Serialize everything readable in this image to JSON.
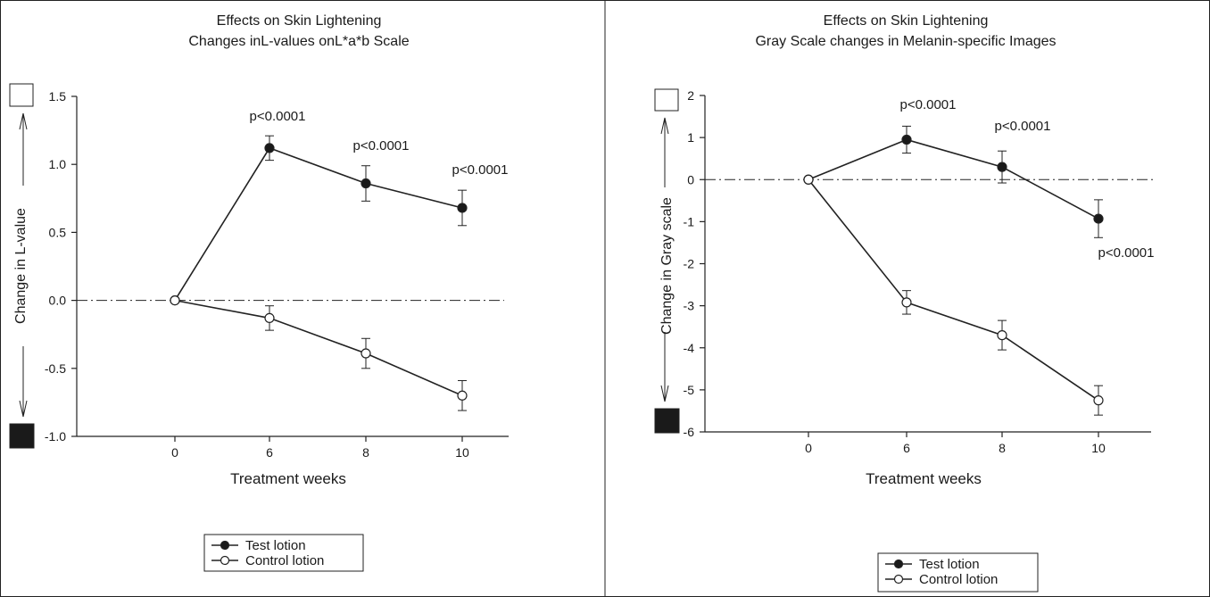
{
  "chart_data": [
    {
      "type": "line",
      "title": "Effects on Skin Lightening",
      "subtitle": "Changes inL-values onL*a*b Scale",
      "xlabel": "Treatment weeks",
      "ylabel": "Change in L-value",
      "x": [
        0,
        6,
        8,
        10
      ],
      "x_ticks": [
        "0",
        "6",
        "8",
        "10"
      ],
      "ylim": [
        -1.0,
        1.5
      ],
      "y_ticks": [
        -1.0,
        -0.5,
        0.0,
        0.5,
        1.0,
        1.5
      ],
      "y_tick_labels": [
        "-1.0",
        "-0.5",
        "0.0",
        "0.5",
        "1.0",
        "1.5"
      ],
      "grid": false,
      "reference_line": 0,
      "series": [
        {
          "name": "Test lotion",
          "marker": "filled-circle",
          "values": [
            0,
            1.12,
            0.86,
            0.68
          ],
          "error": [
            0,
            0.09,
            0.13,
            0.13
          ]
        },
        {
          "name": "Control lotion",
          "marker": "open-circle",
          "values": [
            0,
            -0.13,
            -0.39,
            -0.7
          ],
          "error": [
            0,
            0.09,
            0.11,
            0.11
          ]
        }
      ],
      "annotations": [
        {
          "text": "p<0.0001",
          "x": 6,
          "y": 1.32
        },
        {
          "text": "p<0.0001",
          "x": 8,
          "y": 1.11
        },
        {
          "text": "p<0.0001",
          "x": 10,
          "y": 0.92
        }
      ],
      "legend": {
        "placement": "bottom",
        "items": [
          "Test lotion",
          "Control lotion"
        ]
      }
    },
    {
      "type": "line",
      "title": "Effects on Skin Lightening",
      "subtitle": "Gray Scale changes in Melanin-specific Images",
      "xlabel": "Treatment weeks",
      "ylabel": "Change in Gray scale",
      "x": [
        0,
        6,
        8,
        10
      ],
      "x_ticks": [
        "0",
        "6",
        "8",
        "10"
      ],
      "ylim": [
        -6,
        2
      ],
      "y_ticks": [
        -6,
        -5,
        -4,
        -3,
        -2,
        -1,
        0,
        1,
        2
      ],
      "y_tick_labels": [
        "-6",
        "-5",
        "-4",
        "-3",
        "-2",
        "-1",
        "0",
        "1",
        "2"
      ],
      "grid": false,
      "reference_line": 0,
      "series": [
        {
          "name": "Test lotion",
          "marker": "filled-circle",
          "values": [
            0,
            0.95,
            0.3,
            -0.93
          ],
          "error": [
            0,
            0.32,
            0.38,
            0.45
          ]
        },
        {
          "name": "Control lotion",
          "marker": "open-circle",
          "values": [
            0,
            -2.92,
            -3.7,
            -5.25
          ],
          "error": [
            0,
            0.28,
            0.35,
            0.35
          ]
        }
      ],
      "annotations": [
        {
          "text": "p<0.0001",
          "x": 6,
          "y": 1.72
        },
        {
          "text": "p<0.0001",
          "x": 8,
          "y": 1.22
        },
        {
          "text": "p<0.0001",
          "x": 10,
          "y": -1.85
        }
      ],
      "legend": {
        "placement": "bottom",
        "items": [
          "Test lotion",
          "Control lotion"
        ]
      }
    }
  ]
}
